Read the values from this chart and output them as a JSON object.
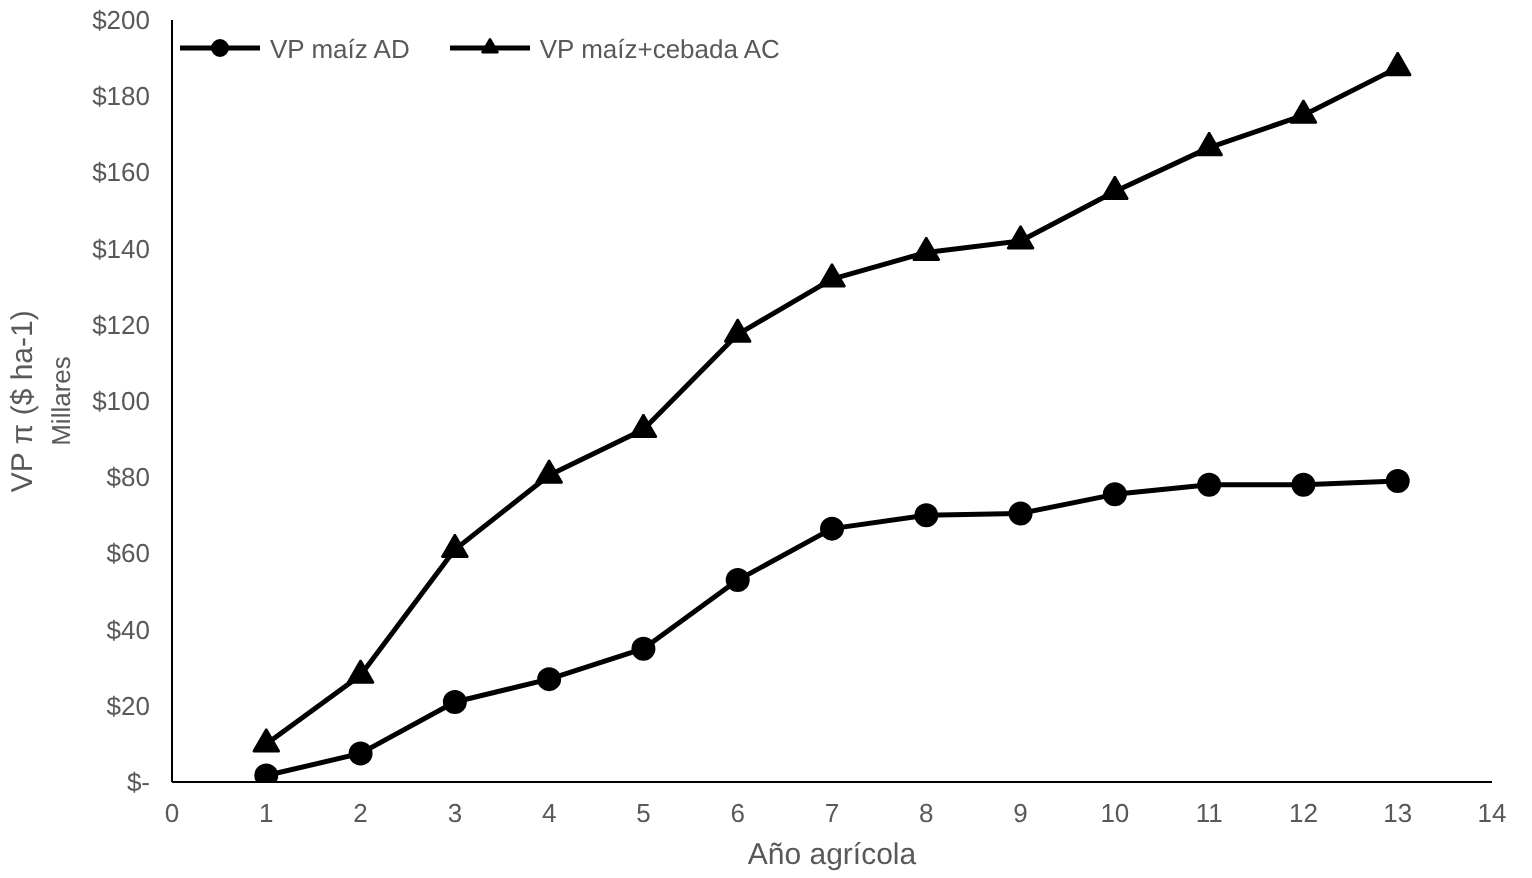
{
  "chart_data": {
    "type": "line",
    "xlabel": "Año agrícola",
    "ylabel": "VP π ($ ha-1)",
    "annotations": [
      "Millares"
    ],
    "x": [
      1,
      2,
      3,
      4,
      5,
      6,
      7,
      8,
      9,
      10,
      11,
      12,
      13
    ],
    "series": [
      {
        "name": "VP maíz AD",
        "color": "#000000",
        "marker": "circle",
        "values": [
          1.7,
          7.5,
          21,
          27,
          35,
          53,
          66.5,
          70,
          70.5,
          75.5,
          78,
          78,
          79
        ]
      },
      {
        "name": "VP maíz+cebada AC",
        "color": "#000000",
        "marker": "triangle",
        "values": [
          10,
          28,
          61,
          80.5,
          92.5,
          117.5,
          132,
          139,
          142,
          155,
          166.5,
          175,
          187.5
        ]
      }
    ],
    "xlim": [
      0,
      14
    ],
    "xticks": [
      0,
      1,
      2,
      3,
      4,
      5,
      6,
      7,
      8,
      9,
      10,
      11,
      12,
      13,
      14
    ],
    "ylim": [
      0,
      200
    ],
    "yticks": [
      {
        "value": 0,
        "label": "$-"
      },
      {
        "value": 20,
        "label": "$20"
      },
      {
        "value": 40,
        "label": "$40"
      },
      {
        "value": 60,
        "label": "$60"
      },
      {
        "value": 80,
        "label": "$80"
      },
      {
        "value": 100,
        "label": "$100"
      },
      {
        "value": 120,
        "label": "$120"
      },
      {
        "value": 140,
        "label": "$140"
      },
      {
        "value": 160,
        "label": "$160"
      },
      {
        "value": 180,
        "label": "$180"
      },
      {
        "value": 200,
        "label": "$200"
      }
    ],
    "grid": false,
    "legend": "top",
    "line_style": "solid"
  }
}
